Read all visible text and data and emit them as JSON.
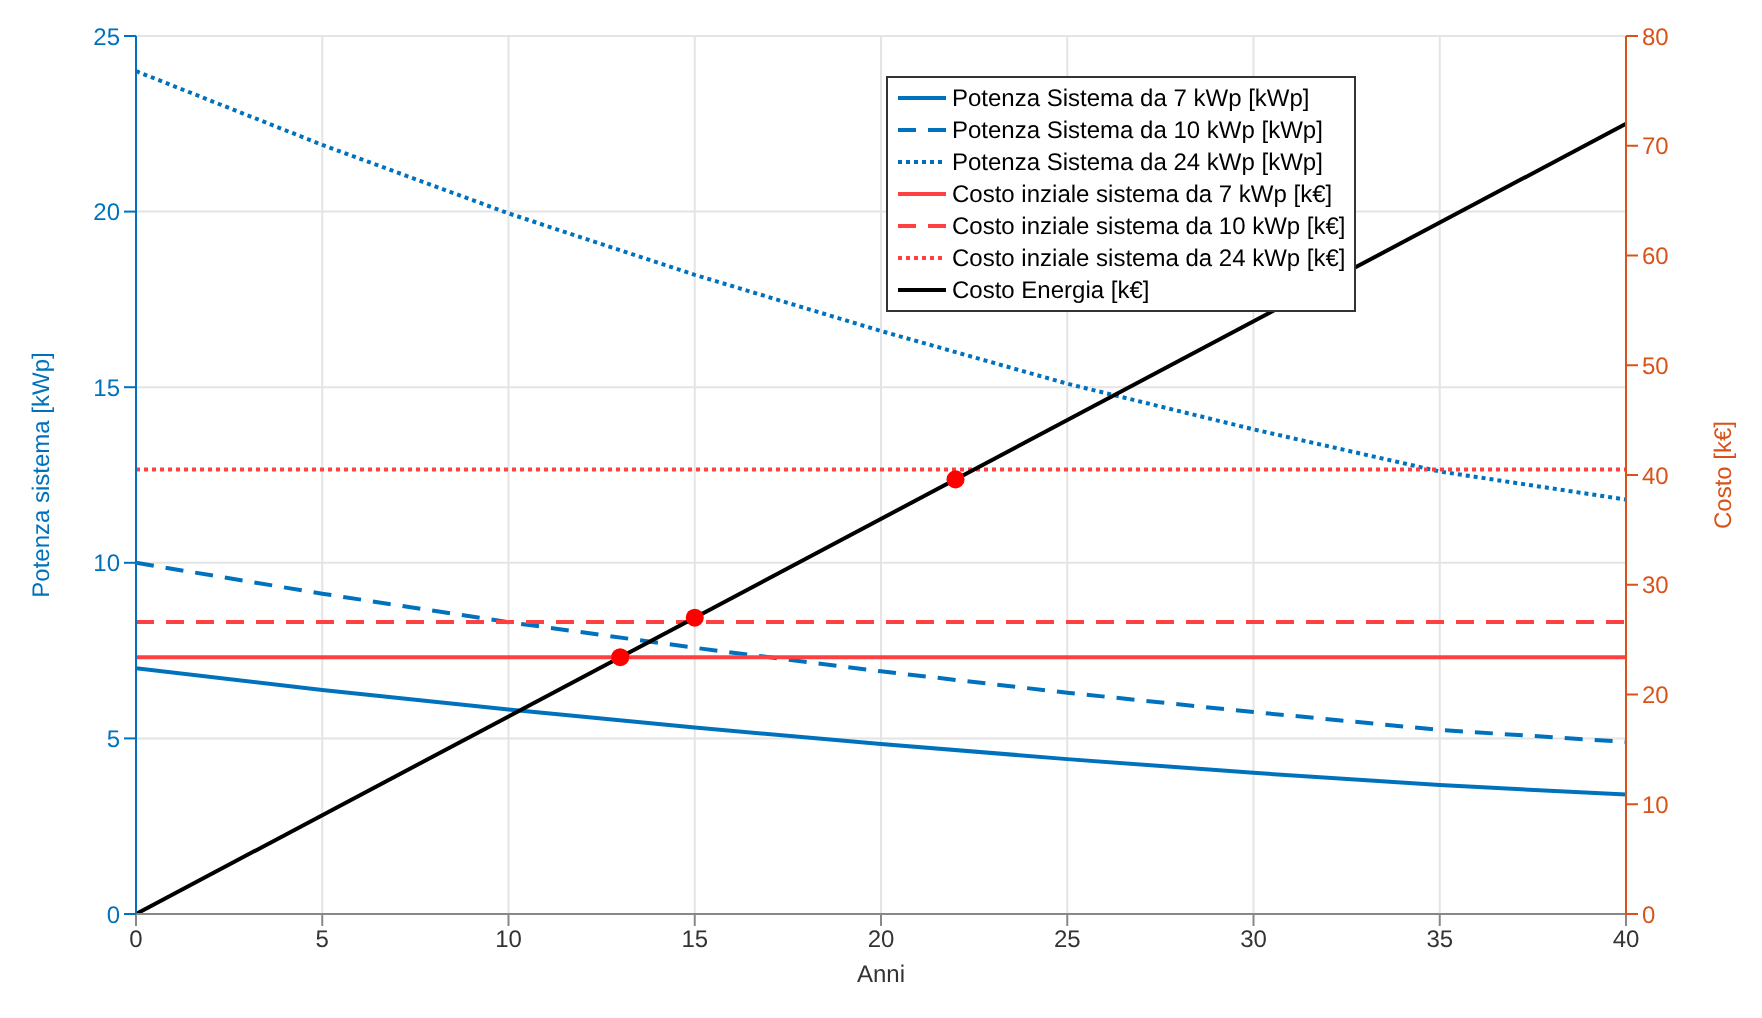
{
  "chart_data": {
    "type": "line",
    "xlabel": "Anni",
    "ylabel": "Potenza sistema [kWp]",
    "y2label": "Costo [k€]",
    "x": [
      0,
      5,
      10,
      15,
      20,
      25,
      30,
      35,
      40
    ],
    "xlim": [
      0,
      40
    ],
    "xticks": [
      0,
      5,
      10,
      15,
      20,
      25,
      30,
      35,
      40
    ],
    "ylim": [
      0,
      25
    ],
    "yticks": [
      0,
      5,
      10,
      15,
      20,
      25
    ],
    "y2lim": [
      0,
      80
    ],
    "y2ticks": [
      0,
      10,
      20,
      30,
      40,
      50,
      60,
      70,
      80
    ],
    "grid": true,
    "legend": "top right",
    "series": [
      {
        "name": "Potenza Sistema da 7 kWp [kWp]",
        "color": "#0072bd",
        "line_style": "solid",
        "values": [
          7,
          6.38,
          5.82,
          5.31,
          4.84,
          4.41,
          4.02,
          3.67,
          3.4
        ]
      },
      {
        "name": "Potenza Sistema da 10 kWp [kWp]",
        "color": "#0072bd",
        "line_style": "dashed",
        "values": [
          10,
          9.12,
          8.31,
          7.58,
          6.91,
          6.3,
          5.75,
          5.24,
          4.9
        ]
      },
      {
        "name": "Potenza Sistema da 24 kWp [kWp]",
        "color": "#0072bd",
        "line_style": "dotted",
        "values": [
          24,
          21.9,
          19.95,
          18.2,
          16.6,
          15.1,
          13.8,
          12.6,
          11.8
        ]
      },
      {
        "name": "Costo inziale sistema da 7 kWp [k€]",
        "color": "#ff4040",
        "line_style": "solid",
        "axis": "y2",
        "x": [
          0,
          40
        ],
        "values": [
          23.4,
          23.4
        ]
      },
      {
        "name": "Costo inziale sistema da 10 kWp [k€]",
        "color": "#ff4040",
        "line_style": "dashed",
        "axis": "y2",
        "x": [
          0,
          40
        ],
        "values": [
          26.6,
          26.6
        ]
      },
      {
        "name": "Costo inziale sistema da 24 kWp [k€]",
        "color": "#ff4040",
        "line_style": "dotted",
        "axis": "y2",
        "x": [
          0,
          40
        ],
        "values": [
          40.5,
          40.5
        ]
      },
      {
        "name": "Costo Energia [k€]",
        "color": "#000000",
        "line_style": "solid",
        "axis": "y2",
        "x": [
          0,
          40
        ],
        "values": [
          0,
          72
        ]
      },
      {
        "type": "scatter",
        "color": "#ff0000",
        "marker": "circle",
        "axis": "y2",
        "x": [
          13,
          15,
          22
        ],
        "values": [
          23.4,
          27,
          39.6
        ]
      }
    ]
  }
}
